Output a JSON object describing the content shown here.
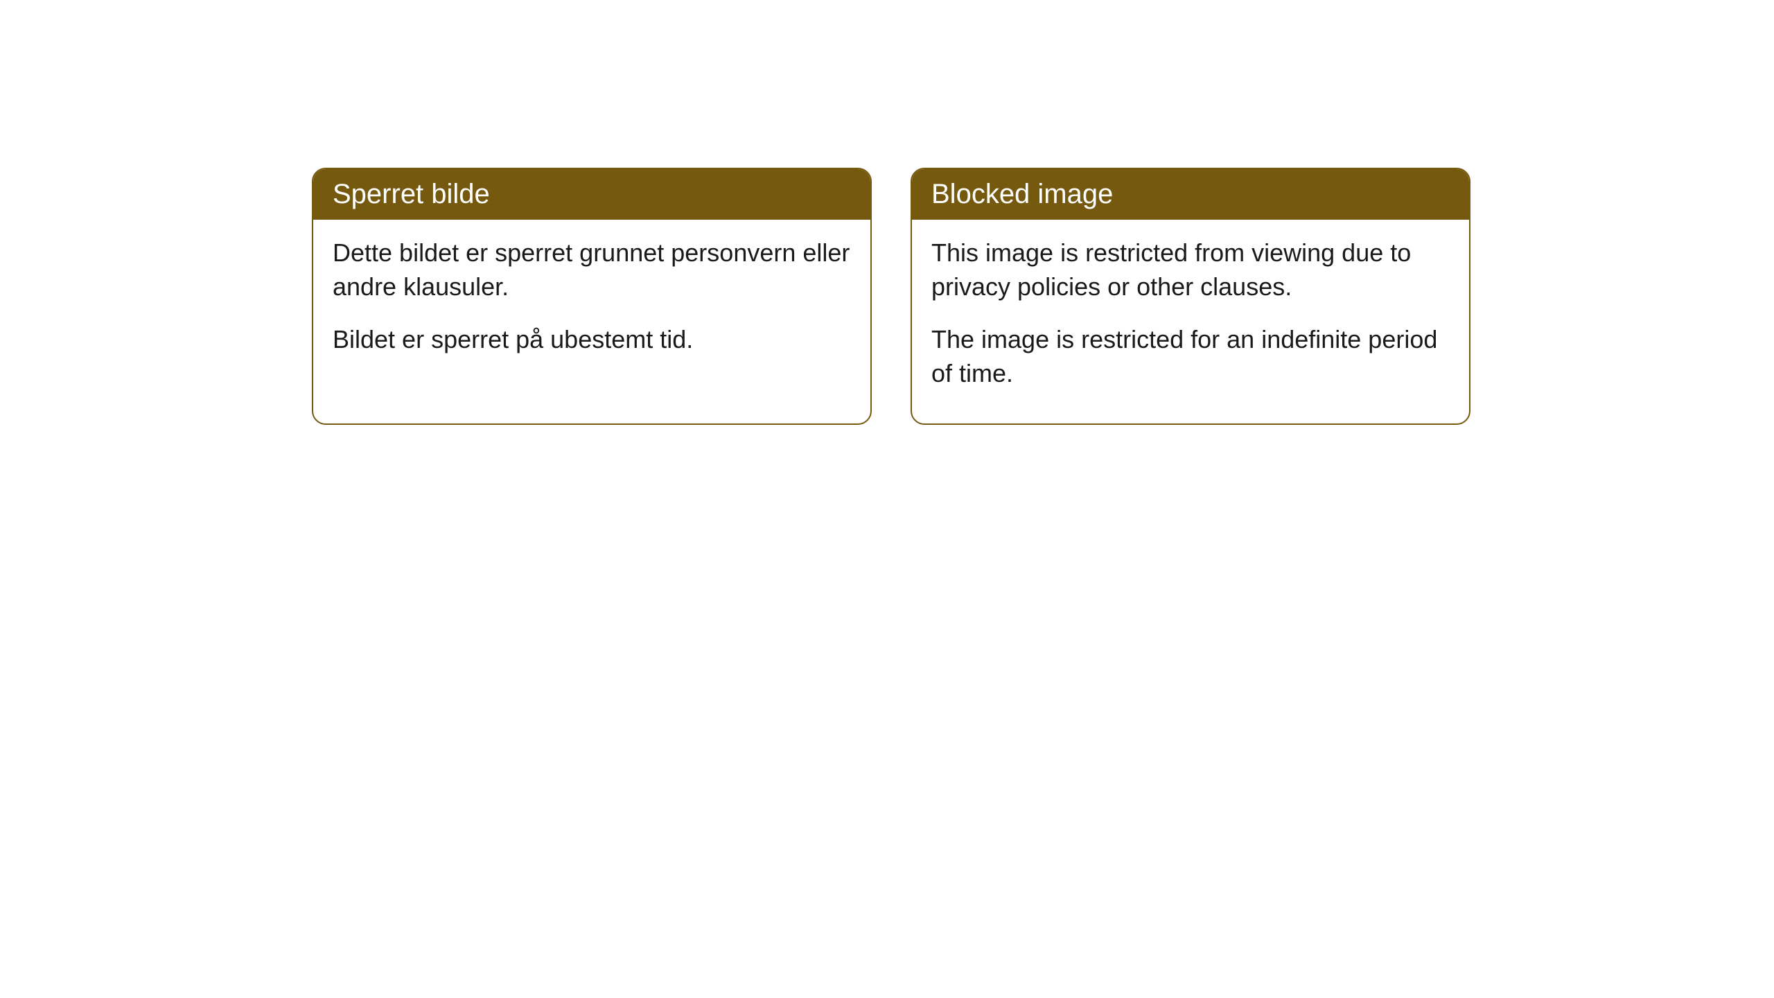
{
  "cards": {
    "left": {
      "title": "Sperret bilde",
      "paragraph1": "Dette bildet er sperret grunnet personvern eller andre klausuler.",
      "paragraph2": "Bildet er sperret på ubestemt tid."
    },
    "right": {
      "title": "Blocked image",
      "paragraph1": "This image is restricted from viewing due to privacy policies or other clauses.",
      "paragraph2": "The image is restricted for an indefinite period of time."
    }
  },
  "colors": {
    "header_bg": "#75590f",
    "header_text": "#ffffff",
    "body_bg": "#ffffff",
    "body_text": "#1a1a1a",
    "border": "#75590f"
  },
  "layout": {
    "border_radius": 20,
    "header_fontsize": 40,
    "body_fontsize": 36
  }
}
